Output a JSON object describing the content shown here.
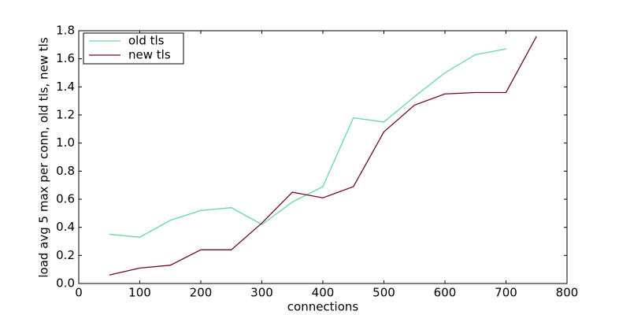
{
  "chart_data": {
    "type": "line",
    "x_label": "connections",
    "y_label": "load avg 5 max per conn, old tls, new tls",
    "x": [
      50,
      100,
      150,
      200,
      250,
      300,
      350,
      400,
      450,
      500,
      550,
      600,
      650,
      700,
      750
    ],
    "series": [
      {
        "name": "old tls",
        "color": "#66d99c",
        "values": [
          0.35,
          0.33,
          0.45,
          0.52,
          0.54,
          0.42,
          0.58,
          0.69,
          1.18,
          1.15,
          1.33,
          1.5,
          1.63,
          1.67,
          null
        ]
      },
      {
        "name": "new tls",
        "color": "#6b0a32",
        "values": [
          0.06,
          0.11,
          0.13,
          0.24,
          0.24,
          0.43,
          0.65,
          0.61,
          0.69,
          1.08,
          1.27,
          1.35,
          1.36,
          1.36,
          1.76
        ]
      }
    ],
    "xlim": [
      0,
      800
    ],
    "xticks": [
      0,
      100,
      200,
      300,
      400,
      500,
      600,
      700,
      800
    ],
    "ylim": [
      0,
      1.8
    ],
    "yticks": [
      {
        "value": 0,
        "label": "0.0"
      },
      0.2,
      0.4,
      0.6,
      0.8,
      {
        "value": 1,
        "label": "1.0"
      },
      1.2,
      1.4,
      1.6,
      1.8
    ],
    "legend": "upper left"
  }
}
